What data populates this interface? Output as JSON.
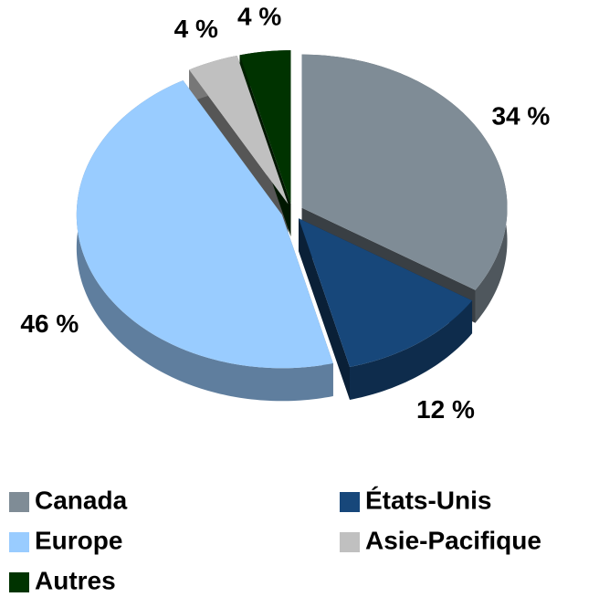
{
  "chart_data": {
    "type": "pie",
    "categories": [
      "Canada",
      "États-Unis",
      "Europe",
      "Asie-Pacifique",
      "Autres"
    ],
    "values": [
      34,
      12,
      46,
      4,
      4
    ],
    "value_labels": [
      "34 %",
      "12 %",
      "46 %",
      "4 %",
      "4 %"
    ],
    "colors": [
      "#7f8c96",
      "#17477a",
      "#99ccff",
      "#c0c0c0",
      "#003300"
    ],
    "legend": "bottom"
  }
}
